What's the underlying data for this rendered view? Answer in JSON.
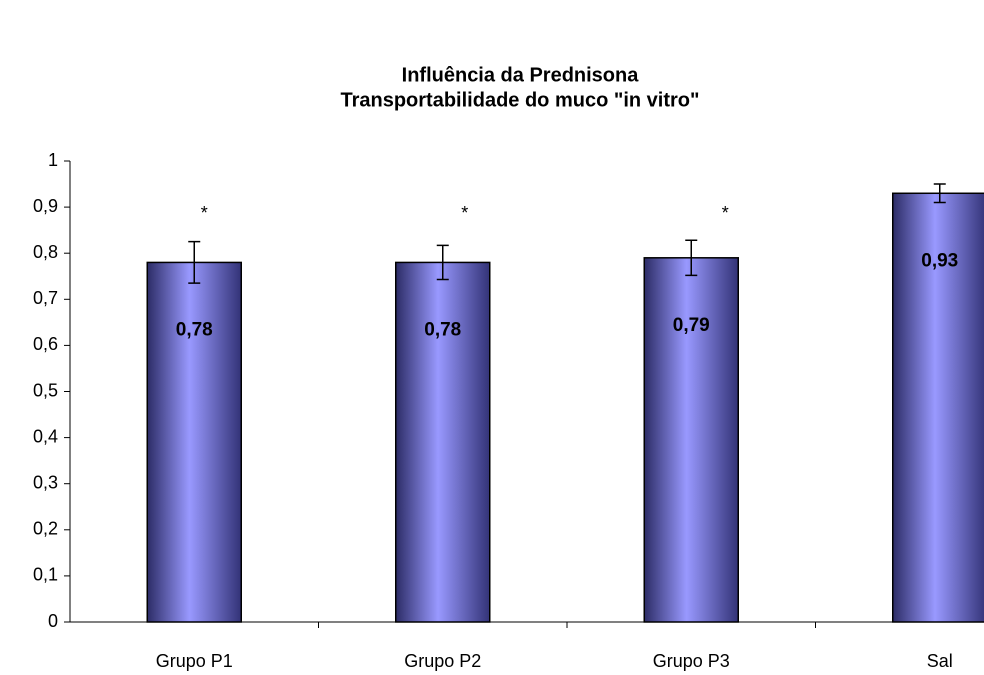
{
  "chart_data": {
    "type": "bar",
    "title": [
      "Influência da Prednisona",
      "Transportabilidade do muco \"in vitro\""
    ],
    "categories": [
      "Grupo P1",
      "Grupo P2",
      "Grupo P3",
      "Sal"
    ],
    "values": [
      0.78,
      0.78,
      0.79,
      0.93
    ],
    "value_labels": [
      "0,78",
      "0,78",
      "0,79",
      "0,93"
    ],
    "errors": [
      0.045,
      0.037,
      0.038,
      0.02
    ],
    "markers": [
      "*",
      "*",
      "*",
      null
    ],
    "color": "#9999ff",
    "ylim": [
      0,
      1
    ],
    "yticks": [
      0,
      {
        "value": 0.1,
        "label": "0,1"
      },
      {
        "value": 0.2,
        "label": "0,2"
      },
      {
        "value": 0.3,
        "label": "0,3"
      },
      {
        "value": 0.4,
        "label": "0,4"
      },
      {
        "value": 0.5,
        "label": "0,5"
      },
      {
        "value": 0.6,
        "label": "0,6"
      },
      {
        "value": 0.7,
        "label": "0,7"
      },
      {
        "value": 0.8,
        "label": "0,8"
      },
      {
        "value": 0.9,
        "label": "0,9"
      },
      1
    ],
    "grid": false
  }
}
